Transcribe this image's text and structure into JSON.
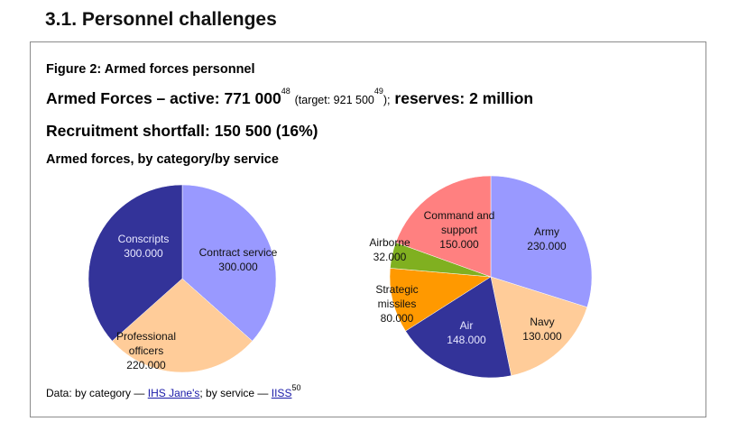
{
  "section": {
    "title": "3.1. Personnel challenges"
  },
  "figure": {
    "title": "Figure 2: Armed forces personnel",
    "active_label": "Armed Forces – active: 771 000",
    "active_ref": "48",
    "target_text": "(target: 921 500",
    "target_ref": "49",
    "target_close": ");",
    "reserves_text": "reserves: 2 million",
    "shortfall": "Recruitment shortfall: 150 500 (16%)",
    "subtitle": "Armed forces, by category/by service"
  },
  "chart_data": [
    {
      "type": "pie",
      "title": "By category",
      "slices": [
        {
          "label": "Contract service",
          "value": 300000,
          "display": "300.000",
          "color": "#9999ff"
        },
        {
          "label": "Professional officers",
          "value": 220000,
          "display": "220.000",
          "color": "#ffcc99"
        },
        {
          "label": "Conscripts",
          "value": 300000,
          "display": "300.000",
          "color": "#333399"
        }
      ]
    },
    {
      "type": "pie",
      "title": "By service",
      "slices": [
        {
          "label": "Army",
          "value": 230000,
          "display": "230.000",
          "color": "#9999ff"
        },
        {
          "label": "Navy",
          "value": 130000,
          "display": "130.000",
          "color": "#ffcc99"
        },
        {
          "label": "Air",
          "value": 148000,
          "display": "148.000",
          "color": "#333399"
        },
        {
          "label": "Strategic missiles",
          "value": 80000,
          "display": "80.000",
          "color": "#ff9900"
        },
        {
          "label": "Airborne",
          "value": 32000,
          "display": "32.000",
          "color": "#80b020"
        },
        {
          "label": "Command and support",
          "value": 150000,
          "display": "150.000",
          "color": "#ff8080"
        }
      ]
    }
  ],
  "source": {
    "prefix": "Data: by category —",
    "link1": "IHS Jane's",
    "middle": "; by service —",
    "link2": "IISS",
    "ref": "50"
  }
}
